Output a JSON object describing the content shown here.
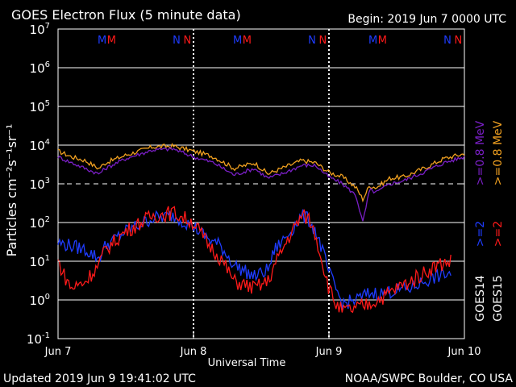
{
  "header": {
    "title": "GOES Electron Flux (5 minute data)",
    "begin": "Begin: 2019 Jun 7 0000 UTC"
  },
  "footer": {
    "updated": "Updated 2019 Jun  9 19:41:02 UTC",
    "credit": "NOAA/SWPC Boulder, CO USA"
  },
  "colors": {
    "goes14_ge08": "#7a1fc6",
    "goes15_ge08": "#f0a020",
    "goes14_ge2": "#1f3cff",
    "goes15_ge2": "#ff1a1a",
    "grid": "#ffffff",
    "background": "#000000"
  },
  "chart_data": {
    "type": "line",
    "title": "GOES Electron Flux (5 minute data)",
    "xlabel": "Universal Time",
    "ylabel": "Particles cm⁻²s⁻¹sr⁻¹",
    "y_scale": "log",
    "ylim": [
      0.1,
      10000000
    ],
    "xlim": [
      0,
      3
    ],
    "x_ticks": [
      {
        "x": 0,
        "label": "Jun 7"
      },
      {
        "x": 1,
        "label": "Jun 8"
      },
      {
        "x": 2,
        "label": "Jun 9"
      },
      {
        "x": 3,
        "label": "Jun 10"
      }
    ],
    "y_ticks": [
      {
        "exp": -1,
        "base": "10",
        "sup": "-1"
      },
      {
        "exp": 0,
        "base": "10",
        "sup": "0"
      },
      {
        "exp": 1,
        "base": "10",
        "sup": "1"
      },
      {
        "exp": 2,
        "base": "10",
        "sup": "2"
      },
      {
        "exp": 3,
        "base": "10",
        "sup": "3"
      },
      {
        "exp": 4,
        "base": "10",
        "sup": "4"
      },
      {
        "exp": 5,
        "base": "10",
        "sup": "5"
      },
      {
        "exp": 6,
        "base": "10",
        "sup": "6"
      },
      {
        "exp": 7,
        "base": "10",
        "sup": "7"
      }
    ],
    "threshold": {
      "value": 1000,
      "style": "dashed"
    },
    "grid": true,
    "magnetopause_markers": [
      {
        "x": 0.42,
        "label": "M",
        "color": "#1f3cff"
      },
      {
        "x": 0.49,
        "label": "M",
        "color": "#ff1a1a"
      },
      {
        "x": 0.97,
        "label": "N",
        "color": "#1f3cff"
      },
      {
        "x": 1.05,
        "label": "N",
        "color": "#ff1a1a"
      },
      {
        "x": 1.42,
        "label": "M",
        "color": "#1f3cff"
      },
      {
        "x": 1.49,
        "label": "M",
        "color": "#ff1a1a"
      },
      {
        "x": 1.97,
        "label": "N",
        "color": "#1f3cff"
      },
      {
        "x": 2.05,
        "label": "N",
        "color": "#ff1a1a"
      },
      {
        "x": 2.42,
        "label": "M",
        "color": "#1f3cff"
      },
      {
        "x": 2.49,
        "label": "M",
        "color": "#ff1a1a"
      },
      {
        "x": 2.97,
        "label": "N",
        "color": "#1f3cff"
      },
      {
        "x": 3.05,
        "label": "N",
        "color": "#ff1a1a"
      }
    ],
    "day_marker_x": [
      1,
      2
    ],
    "legend": {
      "ge08": [
        {
          "satellite": "GOES14",
          "label": ">=0.8 MeV",
          "color": "#7a1fc6"
        },
        {
          "satellite": "GOES15",
          "label": ">=0.8 MeV",
          "color": "#f0a020"
        }
      ],
      "ge2": [
        {
          "satellite": "GOES14",
          "label": ">=2",
          "color": "#1f3cff"
        },
        {
          "satellite": "GOES15",
          "label": ">=2",
          "color": "#ff1a1a"
        }
      ],
      "satellites": [
        "GOES14",
        "GOES15"
      ],
      "placement": "right"
    },
    "series": [
      {
        "id": "goes15_ge08",
        "color": "#f0a020",
        "points": [
          [
            0,
            7000
          ],
          [
            0.1,
            5000
          ],
          [
            0.2,
            4000
          ],
          [
            0.3,
            2500
          ],
          [
            0.35,
            3500
          ],
          [
            0.5,
            5500
          ],
          [
            0.7,
            9000
          ],
          [
            0.85,
            9500
          ],
          [
            1.0,
            7000
          ],
          [
            1.15,
            5000
          ],
          [
            1.3,
            2500
          ],
          [
            1.45,
            3500
          ],
          [
            1.55,
            1800
          ],
          [
            1.65,
            2500
          ],
          [
            1.8,
            4000
          ],
          [
            1.9,
            3500
          ],
          [
            2.0,
            2000
          ],
          [
            2.1,
            1500
          ],
          [
            2.2,
            800
          ],
          [
            2.25,
            400
          ],
          [
            2.3,
            900
          ],
          [
            2.35,
            800
          ],
          [
            2.45,
            1400
          ],
          [
            2.55,
            1500
          ],
          [
            2.7,
            2500
          ],
          [
            2.85,
            4500
          ],
          [
            3.0,
            6000
          ]
        ]
      },
      {
        "id": "goes14_ge08",
        "color": "#7a1fc6",
        "points": [
          [
            0,
            5000
          ],
          [
            0.1,
            3500
          ],
          [
            0.2,
            2500
          ],
          [
            0.3,
            1800
          ],
          [
            0.35,
            2500
          ],
          [
            0.5,
            4500
          ],
          [
            0.7,
            7500
          ],
          [
            0.85,
            8000
          ],
          [
            1.0,
            5000
          ],
          [
            1.15,
            3500
          ],
          [
            1.3,
            1700
          ],
          [
            1.45,
            2500
          ],
          [
            1.55,
            1400
          ],
          [
            1.65,
            1800
          ],
          [
            1.8,
            3000
          ],
          [
            1.9,
            3000
          ],
          [
            2.0,
            1500
          ],
          [
            2.1,
            1000
          ],
          [
            2.2,
            500
          ],
          [
            2.25,
            100
          ],
          [
            2.3,
            700
          ],
          [
            2.35,
            600
          ],
          [
            2.45,
            1000
          ],
          [
            2.55,
            1200
          ],
          [
            2.7,
            2000
          ],
          [
            2.85,
            3500
          ],
          [
            3.0,
            5000
          ]
        ]
      },
      {
        "id": "goes14_ge2",
        "color": "#1f3cff",
        "points": [
          [
            0,
            30
          ],
          [
            0.1,
            25
          ],
          [
            0.2,
            20
          ],
          [
            0.3,
            12
          ],
          [
            0.35,
            25
          ],
          [
            0.5,
            60
          ],
          [
            0.7,
            130
          ],
          [
            0.85,
            150
          ],
          [
            1.0,
            80
          ],
          [
            1.1,
            40
          ],
          [
            1.2,
            25
          ],
          [
            1.3,
            8
          ],
          [
            1.45,
            4
          ],
          [
            1.55,
            6
          ],
          [
            1.6,
            20
          ],
          [
            1.7,
            50
          ],
          [
            1.8,
            150
          ],
          [
            1.85,
            120
          ],
          [
            1.9,
            60
          ],
          [
            1.95,
            20
          ],
          [
            2.0,
            5
          ],
          [
            2.05,
            2
          ],
          [
            2.1,
            0.8
          ],
          [
            2.2,
            1.0
          ],
          [
            2.3,
            1.5
          ],
          [
            2.4,
            1.5
          ],
          [
            2.5,
            1.8
          ],
          [
            2.6,
            2
          ],
          [
            2.7,
            3
          ],
          [
            2.8,
            4
          ],
          [
            2.9,
            5
          ]
        ]
      },
      {
        "id": "goes15_ge2",
        "color": "#ff1a1a",
        "points": [
          [
            0,
            10
          ],
          [
            0.05,
            4
          ],
          [
            0.1,
            2
          ],
          [
            0.2,
            3
          ],
          [
            0.3,
            8
          ],
          [
            0.35,
            20
          ],
          [
            0.5,
            60
          ],
          [
            0.7,
            150
          ],
          [
            0.85,
            180
          ],
          [
            1.0,
            100
          ],
          [
            1.1,
            30
          ],
          [
            1.2,
            12
          ],
          [
            1.3,
            3
          ],
          [
            1.45,
            2
          ],
          [
            1.55,
            3
          ],
          [
            1.6,
            8
          ],
          [
            1.7,
            40
          ],
          [
            1.8,
            150
          ],
          [
            1.85,
            130
          ],
          [
            1.9,
            50
          ],
          [
            1.95,
            10
          ],
          [
            2.0,
            2
          ],
          [
            2.05,
            0.8
          ],
          [
            2.1,
            0.5
          ],
          [
            2.2,
            0.6
          ],
          [
            2.3,
            0.8
          ],
          [
            2.4,
            1.2
          ],
          [
            2.5,
            2
          ],
          [
            2.6,
            3
          ],
          [
            2.7,
            5
          ],
          [
            2.8,
            8
          ],
          [
            2.9,
            10
          ]
        ]
      }
    ]
  }
}
